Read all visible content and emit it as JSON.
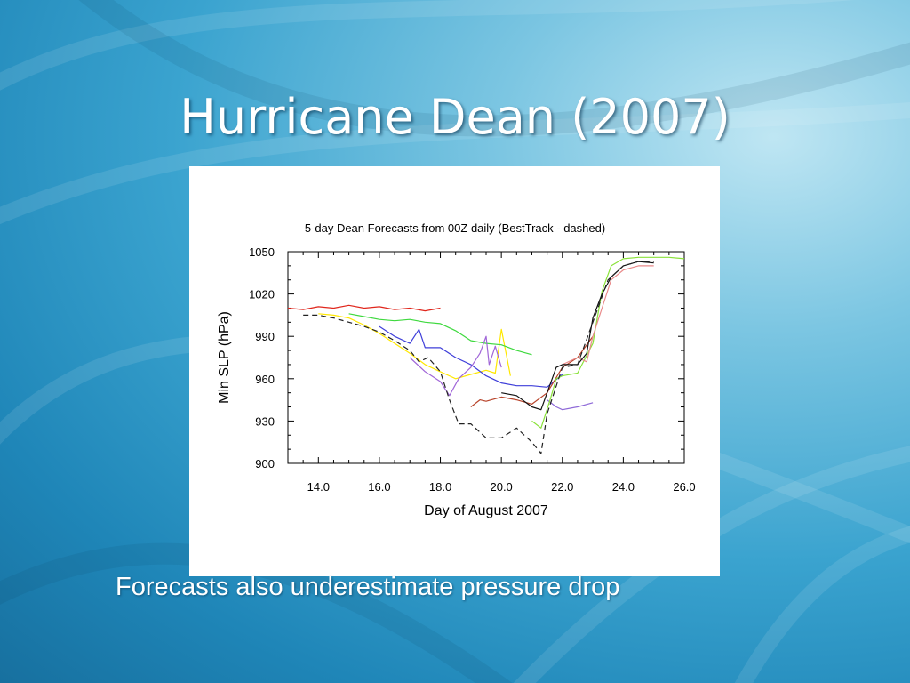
{
  "slide": {
    "title": "Hurricane Dean (2007)",
    "caption": "Forecasts also underestimate pressure drop"
  },
  "colors": {
    "title_text": "#ffffff",
    "background_light": "#bfe6f3",
    "background_dark": "#17709f"
  },
  "chart_data": {
    "type": "line",
    "title": "5-day Dean Forecasts from 00Z daily (BestTrack - dashed)",
    "xlabel": "Day of August 2007",
    "ylabel": "Min SLP (hPa)",
    "xlim": [
      13,
      26
    ],
    "ylim": [
      900,
      1050
    ],
    "xticks": [
      14,
      16,
      18,
      20,
      22,
      24,
      26
    ],
    "xtick_labels": [
      "14.0",
      "16.0",
      "18.0",
      "20.0",
      "22.0",
      "24.0",
      "26.0"
    ],
    "yticks": [
      900,
      930,
      960,
      990,
      1020,
      1050
    ],
    "ytick_labels": [
      "900",
      "930",
      "960",
      "990",
      "1020",
      "1050"
    ],
    "grid": false,
    "series": [
      {
        "color": "#e0261c",
        "dash": false,
        "x": [
          13.0,
          13.5,
          14.0,
          14.5,
          15.0,
          15.5,
          16.0,
          16.5,
          17.0,
          17.5,
          18.0
        ],
        "y": [
          1010,
          1009,
          1011,
          1010,
          1012,
          1010,
          1011,
          1009,
          1010,
          1008,
          1010
        ]
      },
      {
        "color": "#ffe800",
        "dash": false,
        "x": [
          14.0,
          14.5,
          15.0,
          15.5,
          16.0,
          16.5,
          17.0,
          17.5,
          18.0,
          18.5,
          19.0,
          19.5,
          19.8,
          20.0,
          20.3
        ],
        "y": [
          1006,
          1005,
          1003,
          998,
          992,
          985,
          978,
          970,
          965,
          960,
          963,
          966,
          964,
          995,
          962
        ]
      },
      {
        "color": "#3fd93f",
        "dash": false,
        "x": [
          15.0,
          15.5,
          16.0,
          16.5,
          17.0,
          17.5,
          18.0,
          18.5,
          19.0,
          19.5,
          20.0,
          20.5,
          21.0
        ],
        "y": [
          1006,
          1004,
          1002,
          1001,
          1002,
          1000,
          999,
          994,
          987,
          985,
          984,
          980,
          977
        ]
      },
      {
        "color": "#3f3fd9",
        "dash": false,
        "x": [
          16.0,
          16.5,
          17.0,
          17.3,
          17.5,
          18.0,
          18.5,
          19.0,
          19.5,
          20.0,
          20.5,
          21.0,
          21.5,
          22.0
        ],
        "y": [
          997,
          990,
          985,
          995,
          982,
          982,
          975,
          970,
          962,
          957,
          955,
          955,
          954,
          963
        ]
      },
      {
        "color": "#a066d8",
        "dash": false,
        "x": [
          17.0,
          17.5,
          18.0,
          18.3,
          18.6,
          19.0,
          19.3,
          19.5,
          19.6,
          19.8,
          20.0
        ],
        "y": [
          975,
          965,
          958,
          948,
          960,
          968,
          978,
          990,
          970,
          983,
          968
        ]
      },
      {
        "color": "#b8432a",
        "dash": false,
        "x": [
          19.0,
          19.3,
          19.5,
          20.0,
          20.5,
          21.0,
          21.5,
          22.0,
          22.5,
          23.0
        ],
        "y": [
          940,
          945,
          944,
          947,
          945,
          942,
          950,
          968,
          975,
          990
        ]
      },
      {
        "color": "#8f6ad8",
        "dash": false,
        "x": [
          21.5,
          21.8,
          22.0,
          22.5,
          23.0
        ],
        "y": [
          945,
          940,
          938,
          940,
          943
        ]
      },
      {
        "color": "#8ae23a",
        "dash": false,
        "x": [
          21.0,
          21.3,
          21.6,
          21.8,
          22.0,
          22.5,
          23.0,
          23.3,
          23.6,
          24.0,
          24.5,
          25.0,
          25.5,
          26.0
        ],
        "y": [
          930,
          925,
          945,
          960,
          962,
          964,
          985,
          1022,
          1040,
          1045,
          1046,
          1046,
          1046,
          1045
        ]
      },
      {
        "color": "#e98a8a",
        "dash": false,
        "x": [
          22.0,
          22.5,
          22.8,
          23.0,
          23.3,
          23.6,
          24.0,
          24.5,
          25.0
        ],
        "y": [
          970,
          975,
          972,
          990,
          1010,
          1030,
          1037,
          1040,
          1040
        ]
      },
      {
        "color": "#111111",
        "dash": false,
        "x": [
          20.0,
          20.5,
          21.0,
          21.3,
          21.5,
          21.8,
          22.0,
          22.5,
          22.8,
          23.0,
          23.3,
          23.6,
          24.0,
          24.5,
          25.0
        ],
        "y": [
          950,
          948,
          940,
          938,
          950,
          968,
          970,
          970,
          978,
          1003,
          1020,
          1032,
          1040,
          1043,
          1042
        ]
      },
      {
        "color": "#222222",
        "dash": true,
        "x": [
          13.5,
          14.0,
          14.5,
          15.0,
          15.5,
          16.0,
          16.5,
          17.0,
          17.3,
          17.6,
          18.0,
          18.3,
          18.6,
          19.0,
          19.5,
          20.0,
          20.5,
          21.0,
          21.3,
          21.5,
          22.0,
          22.5,
          23.0,
          23.5,
          24.0,
          24.5,
          25.0
        ],
        "y": [
          1005,
          1005,
          1003,
          1000,
          997,
          993,
          987,
          980,
          972,
          975,
          965,
          945,
          928,
          928,
          918,
          918,
          925,
          915,
          907,
          935,
          968,
          970,
          1000,
          1030,
          1040,
          1043,
          1043
        ]
      }
    ]
  }
}
